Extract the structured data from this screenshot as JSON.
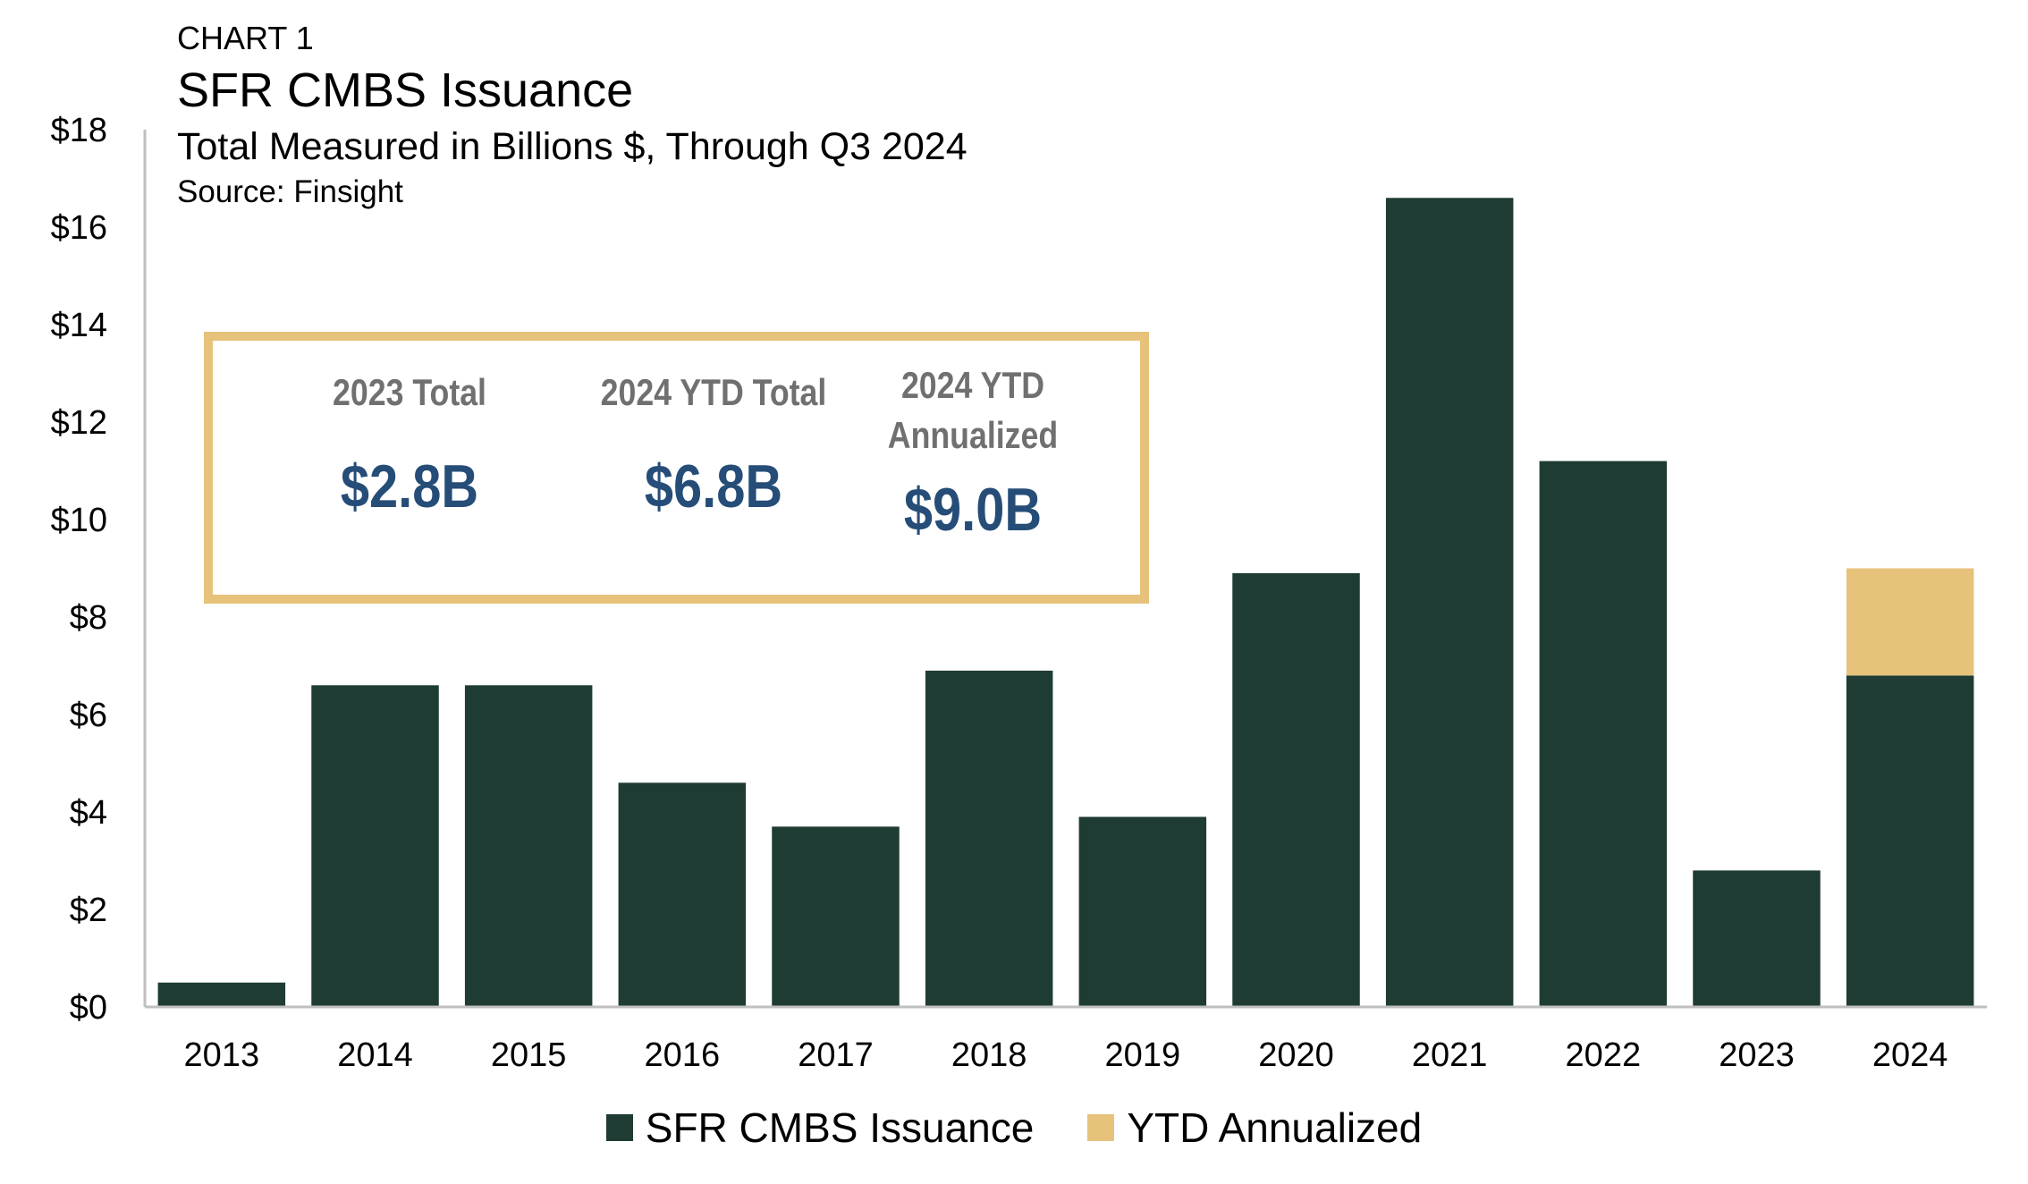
{
  "header": {
    "label": "CHART 1",
    "title": "SFR CMBS Issuance",
    "subtitle": "Total Measured in Billions $, Through Q3 2024",
    "source": "Source: Finsight"
  },
  "callout": {
    "stats": [
      {
        "label": "2023 Total",
        "value": "$2.8B"
      },
      {
        "label": "2024 YTD Total",
        "value": "$6.8B"
      },
      {
        "label": "2024 YTD Annualized",
        "value": "$9.0B"
      }
    ]
  },
  "colors": {
    "issuance": "#1e3c33",
    "annualized": "#e6c27a",
    "callout_border": "#e6c27a",
    "callout_value": "#264d78",
    "callout_label": "#707070",
    "axis": "#bfbfbf"
  },
  "chart_data": {
    "type": "bar",
    "stacked": true,
    "categories": [
      "2013",
      "2014",
      "2015",
      "2016",
      "2017",
      "2018",
      "2019",
      "2020",
      "2021",
      "2022",
      "2023",
      "2024"
    ],
    "series": [
      {
        "name": "SFR CMBS Issuance",
        "values": [
          0.5,
          6.6,
          6.6,
          4.6,
          3.7,
          6.9,
          3.9,
          8.9,
          16.6,
          11.2,
          2.8,
          6.8
        ]
      },
      {
        "name": "YTD Annualized",
        "values": [
          0,
          0,
          0,
          0,
          0,
          0,
          0,
          0,
          0,
          0,
          0,
          2.2
        ]
      }
    ],
    "ylim": [
      0,
      18
    ],
    "yticks": [
      "$0",
      "$2",
      "$4",
      "$6",
      "$8",
      "$10",
      "$12",
      "$14",
      "$16",
      "$18"
    ],
    "legend_position": "bottom",
    "grid": false
  }
}
